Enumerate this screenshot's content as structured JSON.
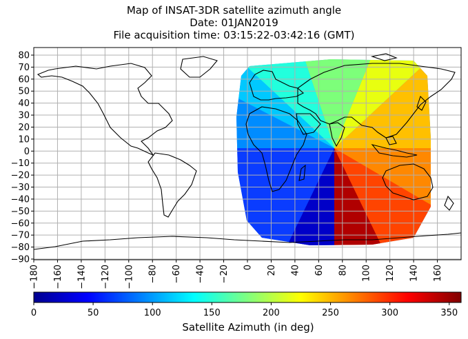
{
  "title": {
    "line1": "Map of INSAT-3DR satellite azimuth angle",
    "line2": "Date: 01JAN2019",
    "line3": "File acquisition time: 03:15:22-03:42:16 (GMT)"
  },
  "map": {
    "projection": "PlateCarree",
    "grid": true,
    "lon_ticks": [
      "−180",
      "−160",
      "−140",
      "−120",
      "−100",
      "−80",
      "−60",
      "−40",
      "−20",
      "0",
      "20",
      "40",
      "60",
      "80",
      "100",
      "120",
      "140",
      "160"
    ],
    "lat_ticks": [
      "80",
      "70",
      "60",
      "50",
      "40",
      "30",
      "20",
      "10",
      "0",
      "−10",
      "−20",
      "−30",
      "−40",
      "−50",
      "−60",
      "−70",
      "−80",
      "−90"
    ],
    "satellite_sub_lon": 74,
    "coverage": "disk centered near 74E, 0N",
    "colormap": "jet"
  },
  "colorbar": {
    "label": "Satellite Azimuth (in deg)",
    "ticks": [
      "0",
      "50",
      "100",
      "150",
      "200",
      "250",
      "300",
      "350"
    ],
    "min": 0,
    "max": 360
  },
  "colors": {
    "grid": "#b0b0b0",
    "coast": "#000000"
  }
}
